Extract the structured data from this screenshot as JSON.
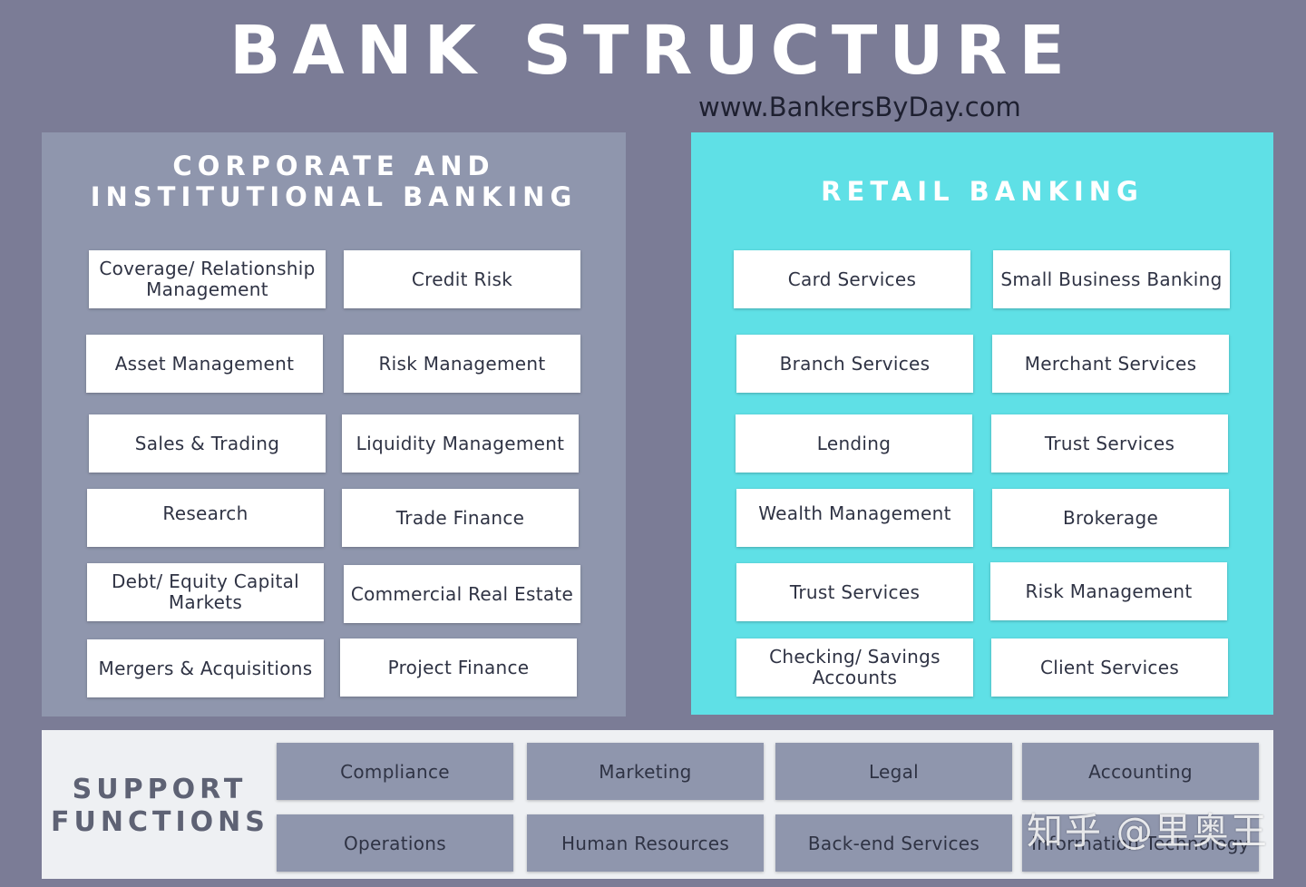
{
  "title": "BANK STRUCTURE",
  "website": "www.BankersByDay.com",
  "corporate": {
    "title_line1": "CORPORATE AND",
    "title_line2": "INSTITUTIONAL BANKING",
    "items": [
      "Coverage/ Relationship Management",
      "Credit Risk",
      "Asset Management",
      "Risk Management",
      "Sales & Trading",
      "Liquidity Management",
      "Research",
      "Trade Finance",
      "Debt/ Equity Capital Markets",
      "Commercial Real Estate",
      "Mergers & Acquisitions",
      "Project Finance"
    ]
  },
  "retail": {
    "title": "RETAIL BANKING",
    "items": [
      "Card Services",
      "Small Business Banking",
      "Branch Services",
      "Merchant Services",
      "Lending",
      "Trust Services",
      "Wealth Management",
      "Brokerage",
      "Trust Services",
      "Risk Management",
      "Checking/ Savings Accounts",
      "Client Services"
    ]
  },
  "support": {
    "title_line1": "SUPPORT",
    "title_line2": "FUNCTIONS",
    "items": [
      "Compliance",
      "Marketing",
      "Legal",
      "Accounting",
      "Operations",
      "Human Resources",
      "Back-end Services",
      "Information Technology"
    ]
  },
  "watermark": "知乎 @里奥王",
  "colors": {
    "background": "#7b7c96",
    "corporate_panel": "#8f96ad",
    "retail_panel": "#5fe0e6",
    "support_panel": "#eef0f3",
    "box": "#ffffff",
    "support_box": "#8f96ad"
  }
}
